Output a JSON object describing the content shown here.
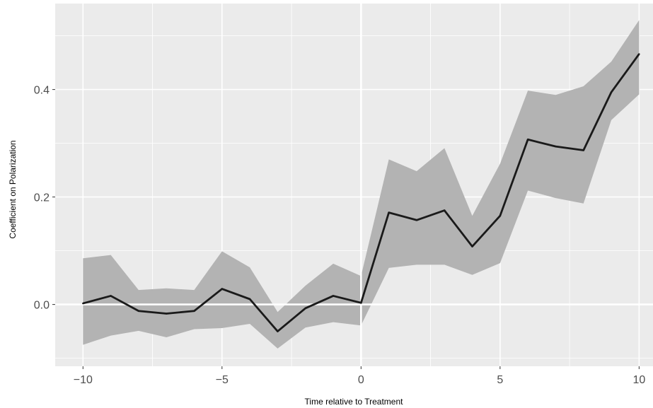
{
  "chart_data": {
    "type": "line",
    "title": "",
    "xlabel": "Time relative to Treatment",
    "ylabel": "Coefficient on Polarization",
    "xlim": [
      -11,
      10.5
    ],
    "ylim": [
      -0.115,
      0.56
    ],
    "x_ticks": [
      -10,
      -5,
      0,
      5,
      10
    ],
    "x_tick_labels": [
      "−10",
      "−5",
      "0",
      "5",
      "10"
    ],
    "y_ticks": [
      0.0,
      0.2,
      0.4
    ],
    "y_tick_labels": [
      "0.0",
      "0.2",
      "0.4"
    ],
    "x_minor": [
      -7.5,
      -2.5,
      2.5,
      7.5
    ],
    "y_minor": [
      -0.1,
      0.1,
      0.3,
      0.5
    ],
    "grid": true,
    "background": "#ebebeb",
    "grid_color": "#ffffff",
    "line_color": "#1a1a1a",
    "ribbon_color": "#b3b3b3",
    "reference_line_y": 0,
    "series": [
      {
        "x": [
          -10,
          -9,
          -8,
          -7,
          -6,
          -5,
          -4,
          -3,
          -2,
          -1,
          0,
          1,
          2,
          3,
          4,
          5,
          6,
          7,
          8,
          9,
          10
        ],
        "values": [
          0.002,
          0.016,
          -0.012,
          -0.017,
          -0.012,
          0.029,
          0.01,
          -0.05,
          -0.007,
          0.016,
          0.003,
          0.171,
          0.157,
          0.175,
          0.108,
          0.165,
          0.307,
          0.294,
          0.287,
          0.395,
          0.466
        ],
        "lower": [
          -0.075,
          -0.058,
          -0.049,
          -0.061,
          -0.046,
          -0.044,
          -0.036,
          -0.082,
          -0.043,
          -0.033,
          -0.039,
          0.068,
          0.074,
          0.074,
          0.055,
          0.077,
          0.212,
          0.198,
          0.188,
          0.343,
          0.391
        ],
        "upper": [
          0.086,
          0.092,
          0.027,
          0.03,
          0.027,
          0.099,
          0.069,
          -0.014,
          0.035,
          0.076,
          0.053,
          0.27,
          0.248,
          0.291,
          0.165,
          0.262,
          0.398,
          0.39,
          0.406,
          0.452,
          0.529
        ]
      }
    ]
  }
}
